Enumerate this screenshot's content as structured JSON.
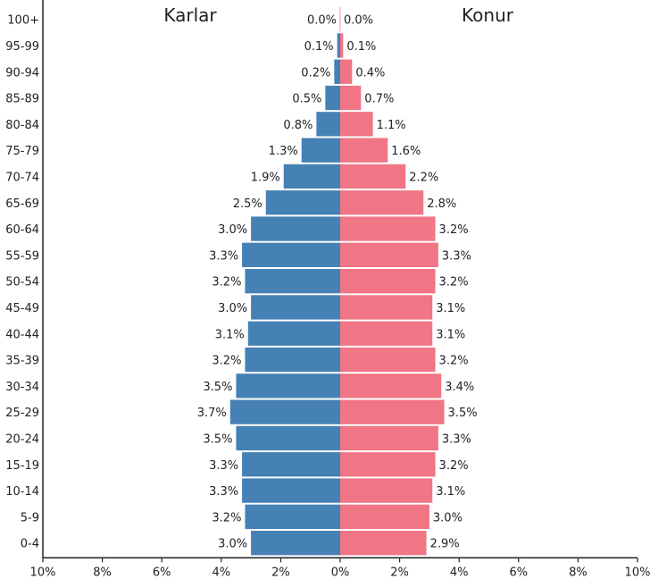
{
  "chart_data": {
    "type": "bar",
    "subtype": "population-pyramid",
    "left_label": "Karlar",
    "right_label": "Konur",
    "categories": [
      "100+",
      "95-99",
      "90-94",
      "85-89",
      "80-84",
      "75-79",
      "70-74",
      "65-69",
      "60-64",
      "55-59",
      "50-54",
      "45-49",
      "40-44",
      "35-39",
      "30-34",
      "25-29",
      "20-24",
      "15-19",
      "10-14",
      "5-9",
      "0-4"
    ],
    "series": [
      {
        "name": "Karlar",
        "color": "#4681b5",
        "values": [
          0.0,
          0.1,
          0.2,
          0.5,
          0.8,
          1.3,
          1.9,
          2.5,
          3.0,
          3.3,
          3.2,
          3.0,
          3.1,
          3.2,
          3.5,
          3.7,
          3.5,
          3.3,
          3.3,
          3.2,
          3.0
        ],
        "labels": [
          "0.0%",
          "0.1%",
          "0.2%",
          "0.5%",
          "0.8%",
          "1.3%",
          "1.9%",
          "2.5%",
          "3.0%",
          "3.3%",
          "3.2%",
          "3.0%",
          "3.1%",
          "3.2%",
          "3.5%",
          "3.7%",
          "3.5%",
          "3.3%",
          "3.3%",
          "3.2%",
          "3.0%"
        ]
      },
      {
        "name": "Konur",
        "color": "#f07585",
        "values": [
          0.0,
          0.1,
          0.4,
          0.7,
          1.1,
          1.6,
          2.2,
          2.8,
          3.2,
          3.3,
          3.2,
          3.1,
          3.1,
          3.2,
          3.4,
          3.5,
          3.3,
          3.2,
          3.1,
          3.0,
          2.9
        ],
        "labels": [
          "0.0%",
          "0.1%",
          "0.4%",
          "0.7%",
          "1.1%",
          "1.6%",
          "2.2%",
          "2.8%",
          "3.2%",
          "3.3%",
          "3.2%",
          "3.1%",
          "3.1%",
          "3.2%",
          "3.4%",
          "3.5%",
          "3.3%",
          "3.2%",
          "3.1%",
          "3.0%",
          "2.9%"
        ]
      }
    ],
    "xlim": [
      -10,
      10
    ],
    "x_ticks": [
      -10,
      -8,
      -6,
      -4,
      -2,
      0,
      2,
      4,
      6,
      8,
      10
    ],
    "x_tick_labels": [
      "10%",
      "8%",
      "6%",
      "4%",
      "2%",
      "0%",
      "2%",
      "4%",
      "6%",
      "8%",
      "10%"
    ],
    "grid": false,
    "legend": "none"
  }
}
